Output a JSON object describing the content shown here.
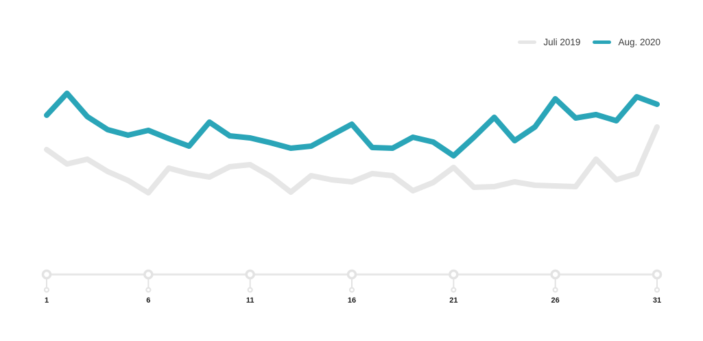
{
  "legend": {
    "items": [
      {
        "id": "juli-2019",
        "label": "Juli 2019",
        "color": "#e6e6e6"
      },
      {
        "id": "aug-2020",
        "label": "Aug. 2020",
        "color": "#2aa5b8"
      }
    ]
  },
  "chart_data": {
    "type": "line",
    "title": "",
    "xlabel": "",
    "ylabel": "",
    "x": [
      1,
      2,
      3,
      4,
      5,
      6,
      7,
      8,
      9,
      10,
      11,
      12,
      13,
      14,
      15,
      16,
      17,
      18,
      19,
      20,
      21,
      22,
      23,
      24,
      25,
      26,
      27,
      28,
      29,
      30,
      31
    ],
    "x_ticks": [
      1,
      6,
      11,
      16,
      21,
      26,
      31
    ],
    "ylim": [
      0,
      100
    ],
    "grid": false,
    "legend_position": "top-right",
    "series": [
      {
        "name": "Juli 2019",
        "color": "#e6e6e6",
        "values": [
          51,
          40.5,
          44,
          35,
          28.5,
          19.5,
          37.5,
          33.5,
          31,
          38.5,
          40,
          31.5,
          20,
          32,
          29,
          27.5,
          33.5,
          32,
          21,
          27,
          38,
          23.5,
          24,
          27.5,
          25,
          24.5,
          24,
          44,
          29,
          33.5,
          67.5
        ]
      },
      {
        "name": "Aug. 2020",
        "color": "#2aa5b8",
        "values": [
          76,
          92,
          75,
          65.5,
          61.5,
          65,
          59,
          53.5,
          71,
          61,
          59.5,
          56,
          52,
          53.5,
          61.5,
          69.5,
          52.5,
          52,
          60,
          56.5,
          46.5,
          60,
          74.5,
          57.5,
          67.5,
          88,
          74,
          76.5,
          72,
          89.5,
          84
        ]
      }
    ]
  },
  "axis": {
    "tick_labels": [
      "1",
      "6",
      "11",
      "16",
      "21",
      "26",
      "31"
    ],
    "line_color": "#e7e7e7",
    "handle_stroke_color": "#e3e3e3",
    "label_color": "#1a1a1a"
  }
}
